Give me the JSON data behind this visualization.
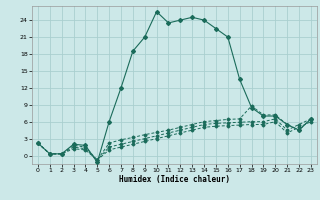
{
  "xlabel": "Humidex (Indice chaleur)",
  "bg_color": "#cce8e8",
  "grid_color": "#aacfcf",
  "line_color": "#1a6b5a",
  "xlim": [
    -0.5,
    23.5
  ],
  "ylim": [
    -1.5,
    26.5
  ],
  "xticks": [
    0,
    1,
    2,
    3,
    4,
    5,
    6,
    7,
    8,
    9,
    10,
    11,
    12,
    13,
    14,
    15,
    16,
    17,
    18,
    19,
    20,
    21,
    22,
    23
  ],
  "yticks": [
    0,
    3,
    6,
    9,
    12,
    15,
    18,
    21,
    24
  ],
  "line1_x": [
    0,
    1,
    2,
    3,
    4,
    5,
    6,
    7,
    8,
    9,
    10,
    11,
    12,
    13,
    14,
    15,
    16,
    17,
    18,
    19,
    20,
    21,
    22,
    23
  ],
  "line1_y": [
    2.2,
    0.3,
    0.3,
    2.0,
    1.8,
    -1.2,
    6.0,
    12.0,
    18.5,
    21.0,
    25.5,
    23.5,
    24.0,
    24.5,
    24.0,
    22.5,
    21.0,
    13.5,
    8.5,
    7.0,
    7.0,
    5.5,
    4.5,
    6.5
  ],
  "line2_x": [
    0,
    1,
    2,
    3,
    4,
    5,
    6,
    7,
    8,
    9,
    10,
    11,
    12,
    13,
    14,
    15,
    16,
    17,
    18,
    19,
    20,
    21,
    22,
    23
  ],
  "line2_y": [
    2.2,
    0.3,
    0.3,
    1.8,
    1.5,
    -0.8,
    2.2,
    2.8,
    3.2,
    3.7,
    4.1,
    4.5,
    5.0,
    5.5,
    6.0,
    6.2,
    6.4,
    6.5,
    8.8,
    7.2,
    7.2,
    5.5,
    4.5,
    6.5
  ],
  "line3_x": [
    0,
    1,
    2,
    3,
    4,
    5,
    6,
    7,
    8,
    9,
    10,
    11,
    12,
    13,
    14,
    15,
    16,
    17,
    18,
    19,
    20,
    21,
    22,
    23
  ],
  "line3_y": [
    2.2,
    0.3,
    0.3,
    1.5,
    1.2,
    -0.8,
    1.5,
    2.0,
    2.5,
    3.0,
    3.5,
    4.0,
    4.5,
    5.0,
    5.5,
    5.7,
    5.8,
    5.9,
    6.0,
    6.0,
    6.5,
    4.5,
    5.5,
    6.5
  ],
  "line4_x": [
    0,
    1,
    2,
    3,
    4,
    5,
    6,
    7,
    8,
    9,
    10,
    11,
    12,
    13,
    14,
    15,
    16,
    17,
    18,
    19,
    20,
    21,
    22,
    23
  ],
  "line4_y": [
    2.2,
    0.3,
    0.3,
    1.2,
    1.0,
    -0.8,
    1.0,
    1.5,
    2.0,
    2.5,
    3.0,
    3.5,
    4.0,
    4.5,
    5.0,
    5.2,
    5.3,
    5.4,
    5.5,
    5.5,
    6.0,
    4.0,
    5.0,
    6.0
  ]
}
